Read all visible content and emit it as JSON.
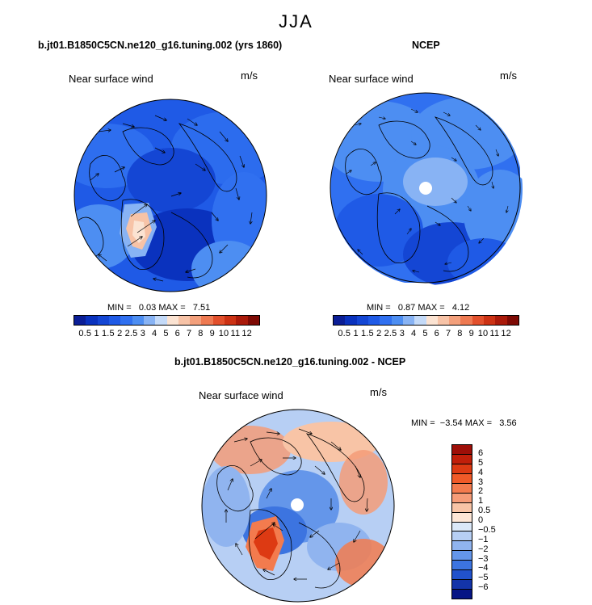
{
  "figure": {
    "season": "JJA",
    "panels": [
      {
        "title": "b.jt01.B1850C5CN.ne120_g16.tuning.002 (yrs 1860)",
        "subtitle": "Near surface wind",
        "units": "m/s",
        "min_label": "MIN =",
        "min_value": "0.03",
        "max_label": "MAX =",
        "max_value": "7.51"
      },
      {
        "title": "NCEP",
        "subtitle": "Near surface wind",
        "units": "m/s",
        "min_label": "MIN =",
        "min_value": "0.87",
        "max_label": "MAX =",
        "max_value": "4.12"
      },
      {
        "title": "b.jt01.B1850C5CN.ne120_g16.tuning.002 - NCEP",
        "subtitle": "Near surface wind",
        "units": "m/s",
        "min_label": "MIN =",
        "min_value": "−3.54",
        "max_label": "MAX =",
        "max_value": "3.56"
      }
    ]
  },
  "colorbar_abs": {
    "labels": [
      "0.5",
      "1",
      "1.5",
      "2",
      "2.5",
      "3",
      "4",
      "5",
      "6",
      "7",
      "8",
      "9",
      "10",
      "11",
      "12"
    ],
    "colors": [
      "#0b1e96",
      "#0a32be",
      "#1446d4",
      "#1f5ae6",
      "#3070f0",
      "#4d8ef2",
      "#88b3f4",
      "#c4daf8",
      "#fbe3d2",
      "#f7c3a7",
      "#f3a07c",
      "#ee7a52",
      "#e2502c",
      "#cc3214",
      "#aa1a0a",
      "#7e0a04"
    ]
  },
  "colorbar_diff": {
    "labels": [
      "6",
      "5",
      "4",
      "3",
      "2",
      "1",
      "0.5",
      "0",
      "−0.5",
      "−1",
      "−2",
      "−3",
      "−4",
      "−5",
      "−6"
    ],
    "colors": [
      "#9e0f08",
      "#c11f0a",
      "#dd3a13",
      "#f05a28",
      "#f37b4e",
      "#f59c78",
      "#f8c4a6",
      "#fde6d6",
      "#dbe8f8",
      "#b7cff4",
      "#90b4ef",
      "#6496ea",
      "#3c74e0",
      "#2152cc",
      "#1334a9",
      "#061585"
    ]
  }
}
